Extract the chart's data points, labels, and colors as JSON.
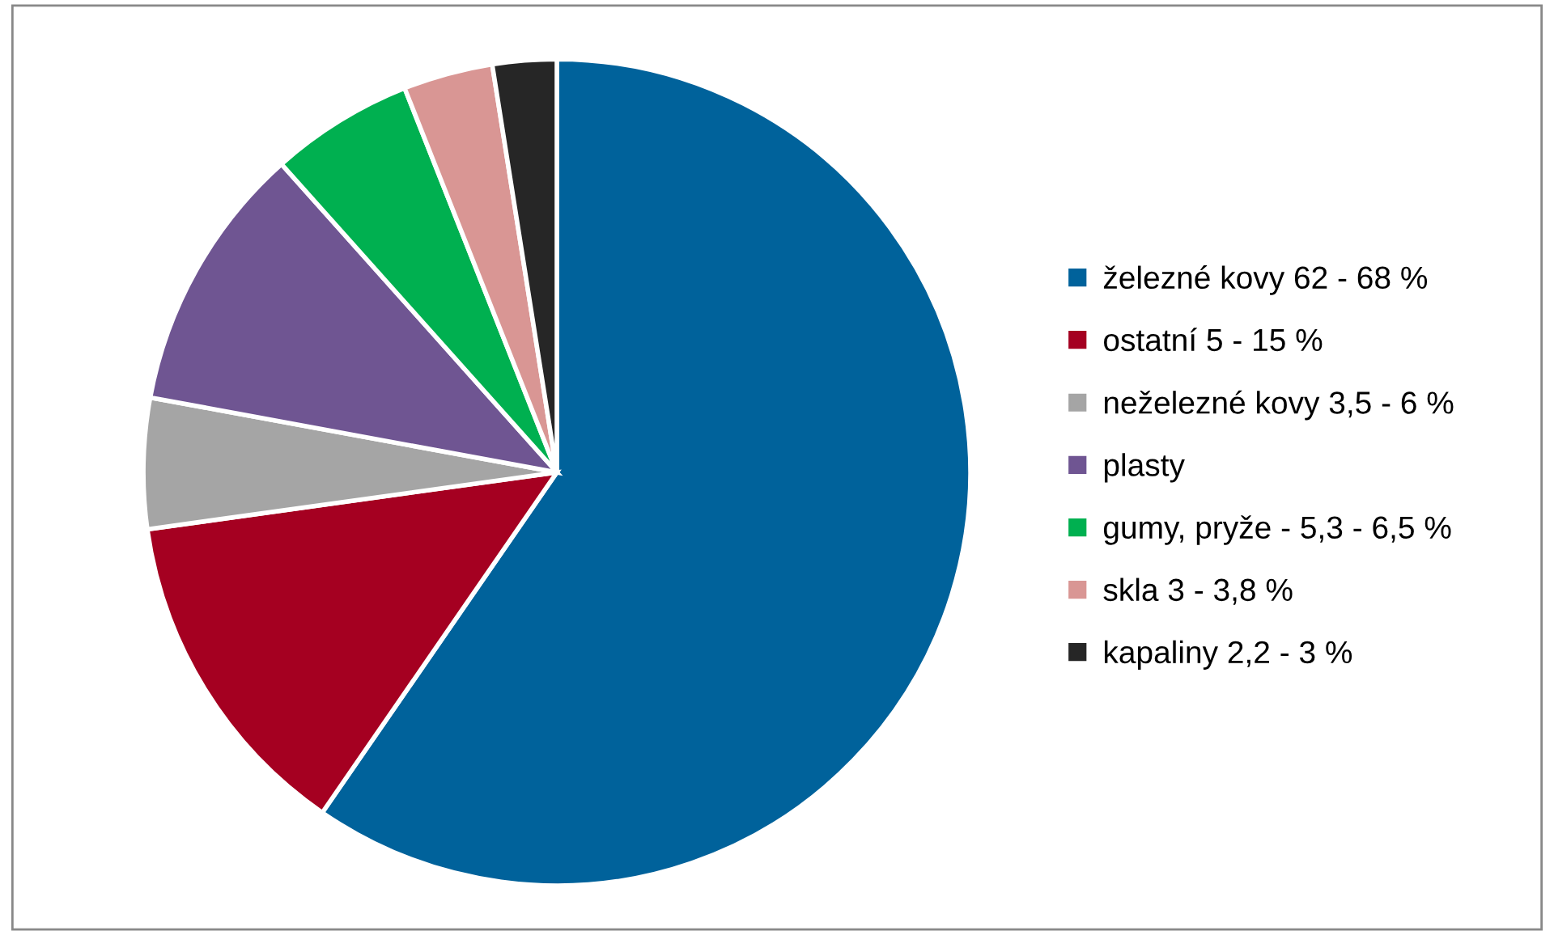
{
  "chart_data": {
    "type": "pie",
    "categories": [
      "železné kovy 62 - 68 %",
      "ostatní 5 - 15 %",
      "neželezné kovy 3,5 - 6 %",
      "plasty",
      "gumy, pryže - 5,3 - 6,5 %",
      "skla 3 - 3,8 %",
      "kapaliny 2,2 - 3 %"
    ],
    "values": [
      59.6,
      13.2,
      5.1,
      10.5,
      5.6,
      3.5,
      2.5
    ],
    "colors": [
      "#00629b",
      "#a50021",
      "#a5a5a5",
      "#6f5592",
      "#00b050",
      "#d99694",
      "#262626"
    ],
    "legend": "right"
  }
}
